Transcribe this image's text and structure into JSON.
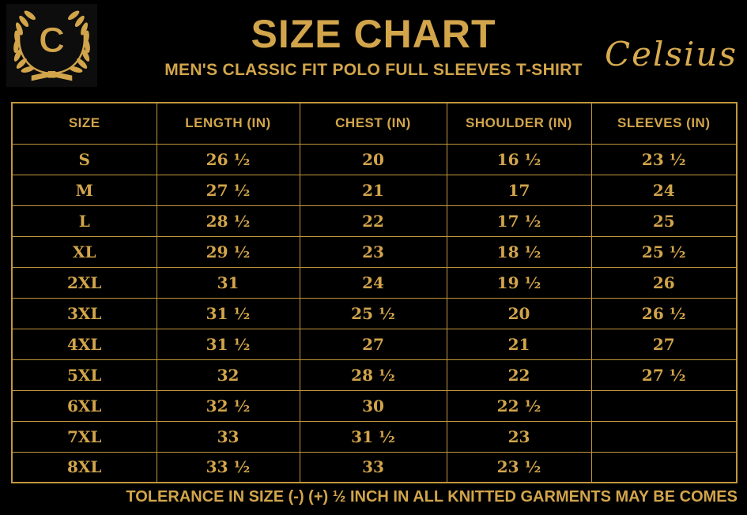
{
  "header": {
    "logo_letter": "C",
    "title": "SIZE CHART",
    "subtitle": "MEN'S CLASSIC FIT POLO FULL SLEEVES T-SHIRT",
    "brand": "Celsius"
  },
  "colors": {
    "gold_text": "#d2a54b",
    "table_border": "#c1973d",
    "background": "#000000"
  },
  "table": {
    "columns": [
      "SIZE",
      "LENGTH (IN)",
      "CHEST (IN)",
      "SHOULDER (IN)",
      "SLEEVES (IN)"
    ],
    "rows": [
      [
        "S",
        "26 ½",
        "20",
        "16 ½",
        "23 ½"
      ],
      [
        "M",
        "27 ½",
        "21",
        "17",
        "24"
      ],
      [
        "L",
        "28 ½",
        "22",
        "17 ½",
        "25"
      ],
      [
        "XL",
        "29 ½",
        "23",
        "18 ½",
        "25 ½"
      ],
      [
        "2XL",
        "31",
        "24",
        "19 ½",
        "26"
      ],
      [
        "3XL",
        "31 ½",
        "25 ½",
        "20",
        "26 ½"
      ],
      [
        "4XL",
        "31 ½",
        "27",
        "21",
        "27"
      ],
      [
        "5XL",
        "32",
        "28 ½",
        "22",
        "27 ½"
      ],
      [
        "6XL",
        "32 ½",
        "30",
        "22 ½",
        ""
      ],
      [
        "7XL",
        "33",
        "31 ½",
        "23",
        ""
      ],
      [
        "8XL",
        "33 ½",
        "33",
        "23 ½",
        ""
      ]
    ]
  },
  "footer": {
    "note": "TOLERANCE IN SIZE (-) (+)  ½ INCH IN ALL KNITTED GARMENTS MAY BE COMES"
  },
  "chart_data": {
    "type": "table",
    "title": "SIZE CHART",
    "subtitle": "MEN'S CLASSIC FIT POLO FULL SLEEVES T-SHIRT",
    "columns": [
      "SIZE",
      "LENGTH (IN)",
      "CHEST (IN)",
      "SHOULDER (IN)",
      "SLEEVES (IN)"
    ],
    "rows": [
      [
        "S",
        "26 ½",
        "20",
        "16 ½",
        "23 ½"
      ],
      [
        "M",
        "27 ½",
        "21",
        "17",
        "24"
      ],
      [
        "L",
        "28 ½",
        "22",
        "17 ½",
        "25"
      ],
      [
        "XL",
        "29 ½",
        "23",
        "18 ½",
        "25 ½"
      ],
      [
        "2XL",
        "31",
        "24",
        "19 ½",
        "26"
      ],
      [
        "3XL",
        "31 ½",
        "25 ½",
        "20",
        "26 ½"
      ],
      [
        "4XL",
        "31 ½",
        "27",
        "21",
        "27"
      ],
      [
        "5XL",
        "32",
        "28 ½",
        "22",
        "27 ½"
      ],
      [
        "6XL",
        "32 ½",
        "30",
        "22 ½",
        ""
      ],
      [
        "7XL",
        "33",
        "31 ½",
        "23",
        ""
      ],
      [
        "8XL",
        "33 ½",
        "33",
        "23 ½",
        ""
      ]
    ],
    "annotations": [
      "TOLERANCE IN SIZE (-) (+)  ½ INCH IN ALL KNITTED GARMENTS MAY BE COMES"
    ]
  }
}
